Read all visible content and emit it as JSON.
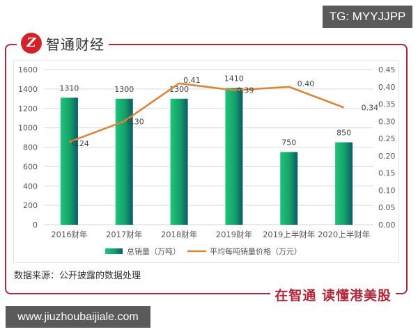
{
  "watermark_top": "TG: MYYJJPP",
  "watermark_bottom": "www.jiuzhoubaijiale.com",
  "brand": {
    "logo_glyph": "Z",
    "name": "智通财经",
    "slogan": "在智通 读懂港美股",
    "color": "#b0283a"
  },
  "source_note": "数据来源：公开披露的数据处理",
  "chart_data": {
    "type": "bar+line",
    "title": "",
    "categories": [
      "2016财年",
      "2017财年",
      "2018财年",
      "2019财年",
      "2019上半财年",
      "2020上半财年"
    ],
    "series": [
      {
        "name": "总销量（万吨）",
        "type": "bar",
        "axis": "left",
        "color": "#1db36f",
        "values": [
          1310,
          1300,
          1300,
          1410,
          750,
          850
        ],
        "labels": [
          "1310",
          "1300",
          "1300",
          "1410",
          "750",
          "850"
        ]
      },
      {
        "name": "平均每吨销量价格（万元）",
        "type": "line",
        "axis": "right",
        "color": "#d9853b",
        "values": [
          0.24,
          0.3,
          0.41,
          0.39,
          0.4,
          0.34
        ],
        "labels": [
          "0.24",
          "0.30",
          "0.41",
          "0.39",
          "0.40",
          "0.34"
        ]
      }
    ],
    "left_axis": {
      "ylim": [
        0,
        1600
      ],
      "ticks": [
        "0",
        "200",
        "400",
        "600",
        "800",
        "1000",
        "1200",
        "1400",
        "1600"
      ]
    },
    "right_axis": {
      "ylim": [
        0,
        0.45
      ],
      "ticks": [
        "0.00",
        "0.05",
        "0.10",
        "0.15",
        "0.20",
        "0.25",
        "0.30",
        "0.35",
        "0.40",
        "0.45"
      ]
    },
    "grid": true,
    "legend_position": "bottom"
  }
}
